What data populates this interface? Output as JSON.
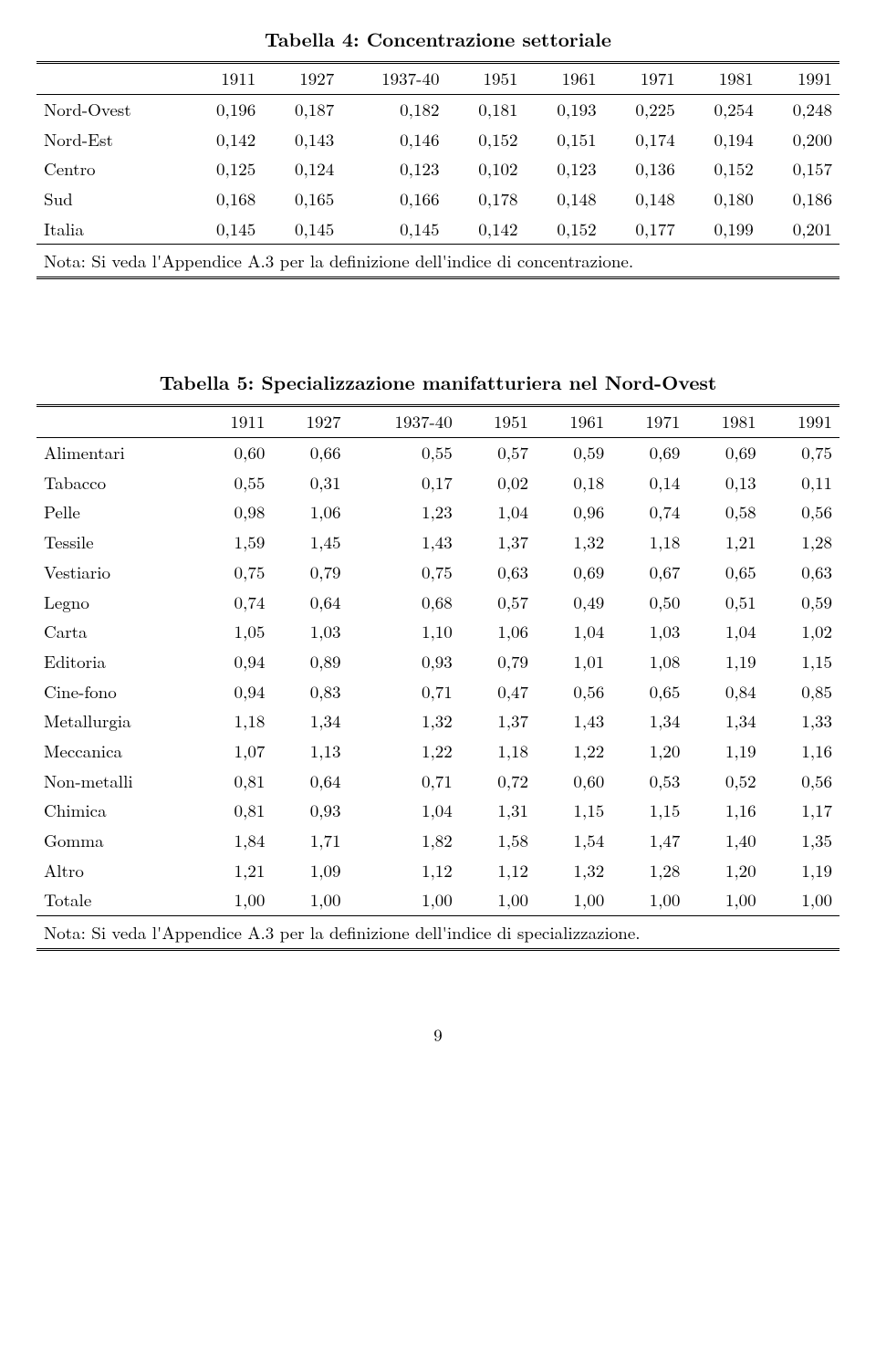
{
  "table4": {
    "title": "Tabella 4: Concentrazione settoriale",
    "columns": [
      "1911",
      "1927",
      "1937-40",
      "1951",
      "1961",
      "1971",
      "1981",
      "1991"
    ],
    "rows": [
      {
        "label": "Nord-Ovest",
        "cells": [
          "0,196",
          "0,187",
          "0,182",
          "0,181",
          "0,193",
          "0,225",
          "0,254",
          "0,248"
        ]
      },
      {
        "label": "Nord-Est",
        "cells": [
          "0,142",
          "0,143",
          "0,146",
          "0,152",
          "0,151",
          "0,174",
          "0,194",
          "0,200"
        ]
      },
      {
        "label": "Centro",
        "cells": [
          "0,125",
          "0,124",
          "0,123",
          "0,102",
          "0,123",
          "0,136",
          "0,152",
          "0,157"
        ]
      },
      {
        "label": "Sud",
        "cells": [
          "0,168",
          "0,165",
          "0,166",
          "0,178",
          "0,148",
          "0,148",
          "0,180",
          "0,186"
        ]
      },
      {
        "label": "Italia",
        "cells": [
          "0,145",
          "0,145",
          "0,145",
          "0,142",
          "0,152",
          "0,177",
          "0,199",
          "0,201"
        ]
      }
    ],
    "note": "Nota: Si veda l'Appendice A.3 per la definizione dell'indice di concentrazione."
  },
  "table5": {
    "title": "Tabella 5: Specializzazione manifatturiera nel Nord-Ovest",
    "columns": [
      "1911",
      "1927",
      "1937-40",
      "1951",
      "1961",
      "1971",
      "1981",
      "1991"
    ],
    "rows": [
      {
        "label": "Alimentari",
        "cells": [
          "0,60",
          "0,66",
          "0,55",
          "0,57",
          "0,59",
          "0,69",
          "0,69",
          "0,75"
        ]
      },
      {
        "label": "Tabacco",
        "cells": [
          "0,55",
          "0,31",
          "0,17",
          "0,02",
          "0,18",
          "0,14",
          "0,13",
          "0,11"
        ]
      },
      {
        "label": "Pelle",
        "cells": [
          "0,98",
          "1,06",
          "1,23",
          "1,04",
          "0,96",
          "0,74",
          "0,58",
          "0,56"
        ]
      },
      {
        "label": "Tessile",
        "cells": [
          "1,59",
          "1,45",
          "1,43",
          "1,37",
          "1,32",
          "1,18",
          "1,21",
          "1,28"
        ]
      },
      {
        "label": "Vestiario",
        "cells": [
          "0,75",
          "0,79",
          "0,75",
          "0,63",
          "0,69",
          "0,67",
          "0,65",
          "0,63"
        ]
      },
      {
        "label": "Legno",
        "cells": [
          "0,74",
          "0,64",
          "0,68",
          "0,57",
          "0,49",
          "0,50",
          "0,51",
          "0,59"
        ]
      },
      {
        "label": "Carta",
        "cells": [
          "1,05",
          "1,03",
          "1,10",
          "1,06",
          "1,04",
          "1,03",
          "1,04",
          "1,02"
        ]
      },
      {
        "label": "Editoria",
        "cells": [
          "0,94",
          "0,89",
          "0,93",
          "0,79",
          "1,01",
          "1,08",
          "1,19",
          "1,15"
        ]
      },
      {
        "label": "Cine-fono",
        "cells": [
          "0,94",
          "0,83",
          "0,71",
          "0,47",
          "0,56",
          "0,65",
          "0,84",
          "0,85"
        ]
      },
      {
        "label": "Metallurgia",
        "cells": [
          "1,18",
          "1,34",
          "1,32",
          "1,37",
          "1,43",
          "1,34",
          "1,34",
          "1,33"
        ]
      },
      {
        "label": "Meccanica",
        "cells": [
          "1,07",
          "1,13",
          "1,22",
          "1,18",
          "1,22",
          "1,20",
          "1,19",
          "1,16"
        ]
      },
      {
        "label": "Non-metalli",
        "cells": [
          "0,81",
          "0,64",
          "0,71",
          "0,72",
          "0,60",
          "0,53",
          "0,52",
          "0,56"
        ]
      },
      {
        "label": "Chimica",
        "cells": [
          "0,81",
          "0,93",
          "1,04",
          "1,31",
          "1,15",
          "1,15",
          "1,16",
          "1,17"
        ]
      },
      {
        "label": "Gomma",
        "cells": [
          "1,84",
          "1,71",
          "1,82",
          "1,58",
          "1,54",
          "1,47",
          "1,40",
          "1,35"
        ]
      },
      {
        "label": "Altro",
        "cells": [
          "1,21",
          "1,09",
          "1,12",
          "1,12",
          "1,32",
          "1,28",
          "1,20",
          "1,19"
        ]
      },
      {
        "label": "Totale",
        "cells": [
          "1,00",
          "1,00",
          "1,00",
          "1,00",
          "1,00",
          "1,00",
          "1,00",
          "1,00"
        ]
      }
    ],
    "note": "Nota: Si veda l'Appendice A.3 per la definizione dell'indice di specializzazione."
  },
  "page_number": "9"
}
